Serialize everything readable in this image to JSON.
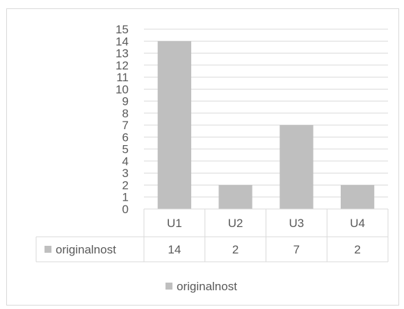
{
  "chart_data": {
    "type": "bar",
    "categories": [
      "U1",
      "U2",
      "U3",
      "U4"
    ],
    "series": [
      {
        "name": "originalnost",
        "values": [
          14,
          2,
          7,
          2
        ],
        "color": "#bfbfbf"
      }
    ],
    "ylim": [
      0,
      15
    ],
    "yticks": [
      "0",
      "1",
      "2",
      "3",
      "4",
      "5",
      "6",
      "7",
      "8",
      "9",
      "10",
      "11",
      "12",
      "13",
      "14",
      "15"
    ],
    "grid": true,
    "data_table": true,
    "legend": {
      "placement": "bottom",
      "label": "originalnost"
    }
  }
}
